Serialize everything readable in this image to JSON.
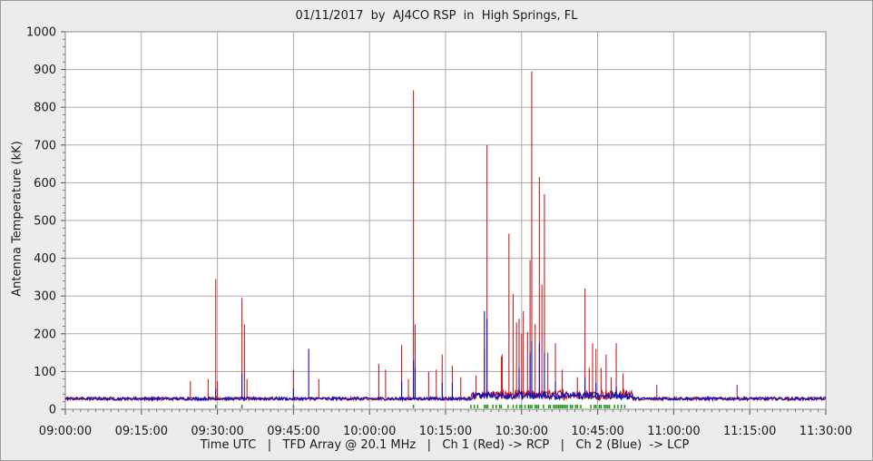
{
  "chart_data": {
    "type": "line",
    "title": "01/11/2017  by  AJ4CO RSP  in  High Springs, FL",
    "xlabel": "Time UTC   |   TFD Array @ 20.1 MHz   |   Ch 1 (Red) -> RCP   |   Ch 2 (Blue)  -> LCP",
    "ylabel": "Antenna Temperature (kK)",
    "ylim": [
      0,
      1000
    ],
    "yticks": [
      "0",
      "100",
      "200",
      "300",
      "400",
      "500",
      "600",
      "700",
      "800",
      "900",
      "1000"
    ],
    "xlim": [
      "09:00:00",
      "11:30:00"
    ],
    "xticks": [
      "09:00:00",
      "09:15:00",
      "09:30:00",
      "09:45:00",
      "10:00:00",
      "10:15:00",
      "10:30:00",
      "10:45:00",
      "11:00:00",
      "11:15:00",
      "11:30:00"
    ],
    "grid": true,
    "baseline_kK": 28,
    "series": [
      {
        "name": "Ch 1 (Red) -> RCP",
        "color": "#cc1f1f",
        "spikes": [
          [
            "09:24:40",
            75
          ],
          [
            "09:28:10",
            80
          ],
          [
            "09:29:40",
            345
          ],
          [
            "09:30:00",
            75
          ],
          [
            "09:34:50",
            295
          ],
          [
            "09:35:20",
            225
          ],
          [
            "09:35:50",
            80
          ],
          [
            "09:45:00",
            105
          ],
          [
            "09:50:00",
            80
          ],
          [
            "10:01:50",
            120
          ],
          [
            "10:03:10",
            105
          ],
          [
            "10:06:20",
            170
          ],
          [
            "10:07:40",
            80
          ],
          [
            "10:08:40",
            845
          ],
          [
            "10:09:00",
            225
          ],
          [
            "10:11:40",
            100
          ],
          [
            "10:13:10",
            105
          ],
          [
            "10:14:20",
            145
          ],
          [
            "10:16:20",
            115
          ],
          [
            "10:18:00",
            85
          ],
          [
            "10:21:00",
            90
          ],
          [
            "10:22:40",
            160
          ],
          [
            "10:23:10",
            700
          ],
          [
            "10:26:00",
            140
          ],
          [
            "10:26:10",
            145
          ],
          [
            "10:27:30",
            465
          ],
          [
            "10:28:20",
            305
          ],
          [
            "10:29:00",
            230
          ],
          [
            "10:29:30",
            240
          ],
          [
            "10:30:00",
            200
          ],
          [
            "10:30:20",
            260
          ],
          [
            "10:31:10",
            205
          ],
          [
            "10:31:40",
            395
          ],
          [
            "10:32:00",
            895
          ],
          [
            "10:32:40",
            225
          ],
          [
            "10:33:30",
            615
          ],
          [
            "10:34:00",
            330
          ],
          [
            "10:34:30",
            570
          ],
          [
            "10:35:10",
            150
          ],
          [
            "10:36:40",
            175
          ],
          [
            "10:38:00",
            105
          ],
          [
            "10:41:00",
            85
          ],
          [
            "10:42:30",
            320
          ],
          [
            "10:43:20",
            110
          ],
          [
            "10:44:00",
            175
          ],
          [
            "10:44:40",
            160
          ],
          [
            "10:45:40",
            110
          ],
          [
            "10:46:40",
            145
          ],
          [
            "10:47:40",
            85
          ],
          [
            "10:48:40",
            175
          ],
          [
            "10:50:00",
            95
          ],
          [
            "10:56:40",
            65
          ],
          [
            "11:12:30",
            65
          ]
        ]
      },
      {
        "name": "Ch 2 (Blue)  -> LCP",
        "color": "#1010b8",
        "spikes": [
          [
            "09:29:40",
            55
          ],
          [
            "09:34:50",
            95
          ],
          [
            "09:45:00",
            55
          ],
          [
            "09:48:00",
            160
          ],
          [
            "10:06:20",
            75
          ],
          [
            "10:08:40",
            130
          ],
          [
            "10:09:00",
            110
          ],
          [
            "10:14:20",
            70
          ],
          [
            "10:16:20",
            70
          ],
          [
            "10:22:40",
            260
          ],
          [
            "10:23:10",
            240
          ],
          [
            "10:29:30",
            110
          ],
          [
            "10:31:40",
            150
          ],
          [
            "10:32:00",
            180
          ],
          [
            "10:33:30",
            175
          ],
          [
            "10:34:30",
            150
          ],
          [
            "10:36:40",
            75
          ],
          [
            "10:42:30",
            85
          ],
          [
            "10:44:40",
            70
          ],
          [
            "10:48:40",
            60
          ]
        ]
      }
    ],
    "activity_marker_color": "#1a9a1a"
  }
}
